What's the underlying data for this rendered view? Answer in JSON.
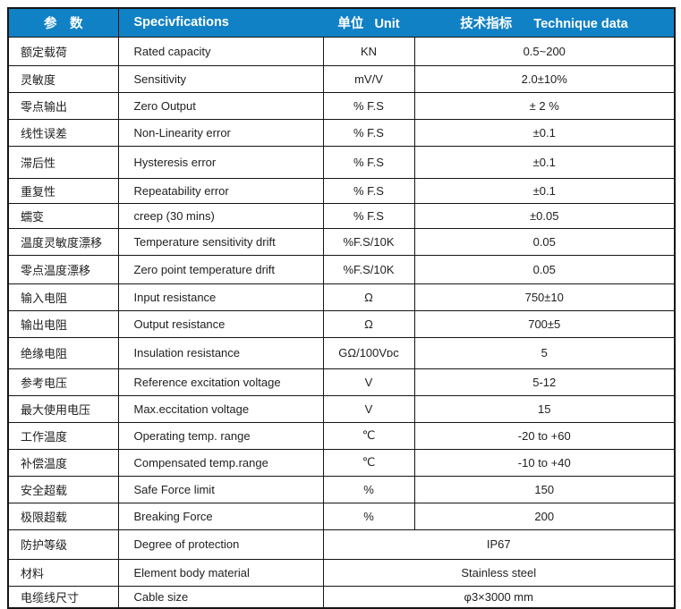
{
  "table": {
    "title_semantic": "Load cell specification table",
    "colors": {
      "header_bg": "#1181c5",
      "header_text": "#ffffff",
      "border": "#151515",
      "body_text": "#212121"
    },
    "header": {
      "col_param": "参　数",
      "col_spec": "Specivfications",
      "col_unit": "单位   Unit",
      "col_data": "技术指标      Technique data"
    },
    "rows": [
      {
        "param": "额定载荷",
        "spec": "Rated capacity",
        "unit": "KN",
        "value": "0.5~200",
        "merged": false
      },
      {
        "param": "灵敏度",
        "spec": "Sensitivity",
        "unit": "mV/V",
        "value": "2.0±10%",
        "merged": false
      },
      {
        "param": "零点输出",
        "spec": "Zero Output",
        "unit": "% F.S",
        "value": "± 2 %",
        "merged": false
      },
      {
        "param": "线性误差",
        "spec": "Non-Linearity error",
        "unit": "% F.S",
        "value": "±0.1",
        "merged": false
      },
      {
        "param": "滞后性",
        "spec": "Hysteresis error",
        "unit": "% F.S",
        "value": "±0.1",
        "merged": false
      },
      {
        "param": "重复性",
        "spec": "Repeatability error",
        "unit": "% F.S",
        "value": "±0.1",
        "merged": false
      },
      {
        "param": "蠕变",
        "spec": "creep (30 mins)",
        "unit": "% F.S",
        "value": "±0.05",
        "merged": false
      },
      {
        "param": "温度灵敏度漂移",
        "spec": "Temperature sensitivity drift",
        "unit": "%F.S/10K",
        "value": "0.05",
        "merged": false
      },
      {
        "param": "零点温度漂移",
        "spec": "Zero point temperature drift",
        "unit": "%F.S/10K",
        "value": "0.05",
        "merged": false
      },
      {
        "param": "输入电阻",
        "spec": "Input resistance",
        "unit": "Ω",
        "value": "750±10",
        "merged": false
      },
      {
        "param": "输出电阻",
        "spec": "Output resistance",
        "unit": "Ω",
        "value": "700±5",
        "merged": false
      },
      {
        "param": "绝缘电阻",
        "spec": "Insulation resistance",
        "unit": "GΩ/100Vᴅᴄ",
        "value": "5",
        "merged": false
      },
      {
        "param": "参考电压",
        "spec": "Reference excitation voltage",
        "unit": "V",
        "value": "5-12",
        "merged": false
      },
      {
        "param": "最大使用电压",
        "spec": "Max.eccitation voltage",
        "unit": "V",
        "value": "15",
        "merged": false
      },
      {
        "param": "工作温度",
        "spec": "Operating temp. range",
        "unit": "℃",
        "value": "-20 to +60",
        "merged": false
      },
      {
        "param": "补偿温度",
        "spec": "Compensated temp.range",
        "unit": "℃",
        "value": "-10 to +40",
        "merged": false
      },
      {
        "param": "安全超载",
        "spec": "Safe Force limit",
        "unit": "%",
        "value": "150",
        "merged": false
      },
      {
        "param": "极限超载",
        "spec": "Breaking Force",
        "unit": "%",
        "value": "200",
        "merged": false
      },
      {
        "param": "防护等级",
        "spec": "Degree of protection",
        "unit": null,
        "value": "IP67",
        "merged": true
      },
      {
        "param": "材料",
        "spec": "Element body material",
        "unit": null,
        "value": "Stainless steel",
        "merged": true
      },
      {
        "param": "电缆线尺寸",
        "spec": "Cable size",
        "unit": null,
        "value": "φ3×3000 mm",
        "merged": true
      }
    ]
  }
}
